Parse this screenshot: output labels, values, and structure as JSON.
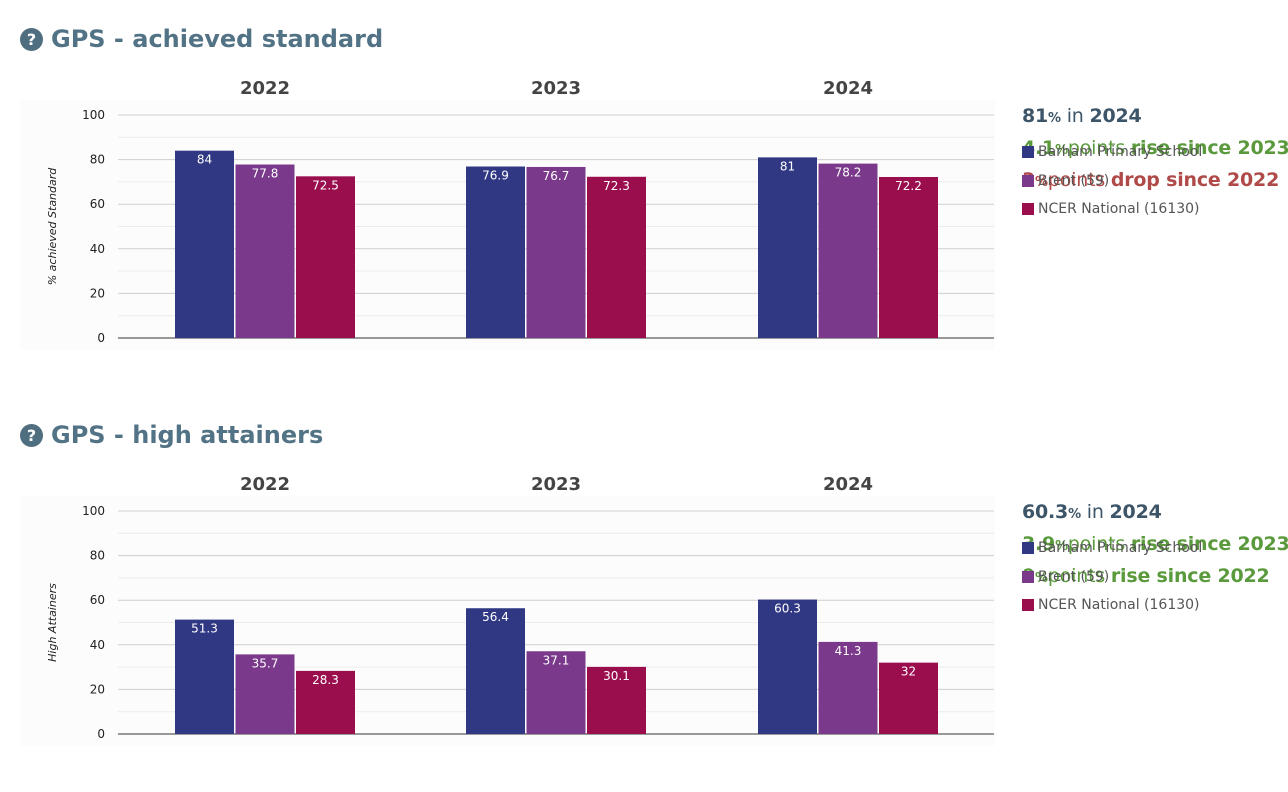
{
  "colors": {
    "school": "#303783",
    "brent": "#7a398b",
    "national": "#9b0e4e",
    "up": "#5a9a3c",
    "down": "#b04a48"
  },
  "legend": [
    "Barham Primary School",
    "Brent (59)",
    "NCER National (16130)"
  ],
  "sections": [
    {
      "title": "GPS - achieved standard",
      "help_icon": "question-circle-icon",
      "summary": {
        "line1": {
          "value": "81",
          "unit": "%",
          "text": "in",
          "year": "2024"
        },
        "line2": {
          "value": "4.1",
          "unit": "%",
          "text": "points",
          "emph": "rise since 2023"
        },
        "line3": {
          "value": "3",
          "unit": "%",
          "text": "points",
          "emph": "drop since 2022"
        }
      }
    },
    {
      "title": "GPS - high attainers",
      "help_icon": "question-circle-icon",
      "summary": {
        "line1": {
          "value": "60.3",
          "unit": "%",
          "text": "in",
          "year": "2024"
        },
        "line2": {
          "value": "3.9",
          "unit": "%",
          "text": "points",
          "emph": "rise since 2023"
        },
        "line3": {
          "value": "9",
          "unit": "%",
          "text": "points",
          "emph": "rise since 2022"
        }
      }
    }
  ],
  "chart_data": [
    {
      "type": "bar",
      "categories": [
        "2022",
        "2023",
        "2024"
      ],
      "ylabel": "% achieved Standard",
      "ylim": [
        0,
        100
      ],
      "yticks": [
        0,
        20,
        40,
        60,
        80,
        100
      ],
      "series": [
        {
          "name": "Barham Primary School",
          "values": [
            84,
            76.9,
            81
          ]
        },
        {
          "name": "Brent (59)",
          "values": [
            77.8,
            76.7,
            78.2
          ]
        },
        {
          "name": "NCER National (16130)",
          "values": [
            72.5,
            72.3,
            72.2
          ]
        }
      ]
    },
    {
      "type": "bar",
      "categories": [
        "2022",
        "2023",
        "2024"
      ],
      "ylabel": "High Attainers",
      "ylim": [
        0,
        100
      ],
      "yticks": [
        0,
        20,
        40,
        60,
        80,
        100
      ],
      "series": [
        {
          "name": "Barham Primary School",
          "values": [
            51.3,
            56.4,
            60.3
          ]
        },
        {
          "name": "Brent (59)",
          "values": [
            35.7,
            37.1,
            41.3
          ]
        },
        {
          "name": "NCER National (16130)",
          "values": [
            28.3,
            30.1,
            32
          ]
        }
      ]
    }
  ]
}
